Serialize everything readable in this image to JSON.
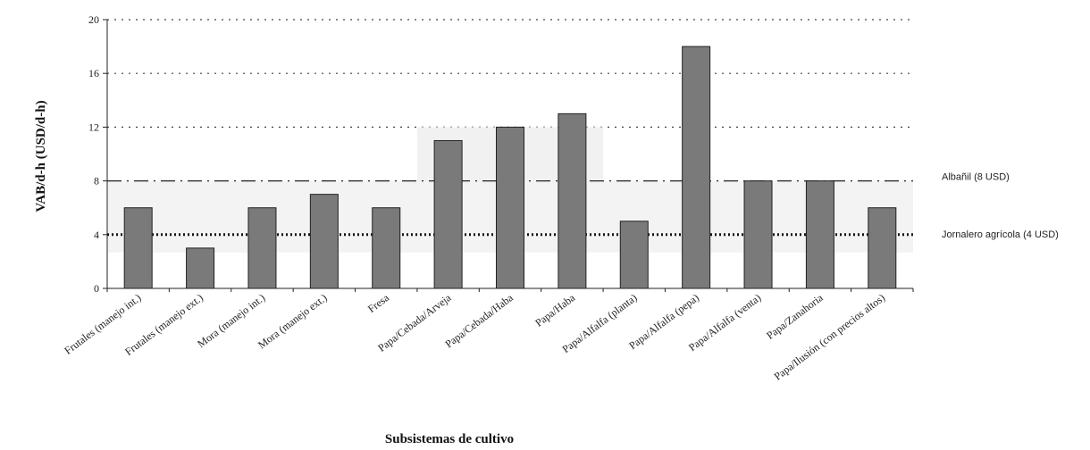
{
  "chart_data": {
    "type": "bar",
    "title": "",
    "ylabel": "VAB/d-h (USD/d-h)",
    "xlabel": "Subsistemas de cultivo",
    "ylim": [
      0,
      20
    ],
    "yticks": [
      "0",
      "4",
      "8",
      "12",
      "16",
      "20"
    ],
    "grid": true,
    "bar_color": "#7a7a7a",
    "categories": [
      "Frutales (manejo int.)",
      "Frutales (manejo ext.)",
      "Mora (manejo int.)",
      "Mora (manejo ext.)",
      "Fresa",
      "Papa/Cebada/Arveja",
      "Papa/Cebada/Haba",
      "Papa/Haba",
      "Papa/Alfalfa (planta)",
      "Papa/Alfalfa (pepa)",
      "Papa/Alfalfa (venta)",
      "Papa/Zanahoria",
      "Papa/Ilusión (con precios altos)"
    ],
    "values": [
      6,
      3,
      6,
      7,
      6,
      11,
      12,
      13,
      5,
      18,
      8,
      8,
      6
    ],
    "reference_lines": [
      {
        "label": "Albañil (8 USD)",
        "value": 8,
        "style": "dash-dot"
      },
      {
        "label": "Jornalero agrícola (4 USD)",
        "value": 4,
        "style": "dotted-bold"
      }
    ]
  }
}
